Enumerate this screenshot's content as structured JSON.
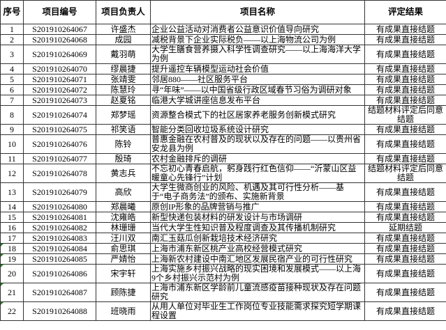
{
  "headers": [
    "序号",
    "项目编号",
    "项目负责人",
    "项目名称",
    "评定结果"
  ],
  "rows": [
    [
      "1",
      "S201910264067",
      "许盛杰",
      "企业公益活动对消费者公益意识价值导向研究",
      "有成果直接结题"
    ],
    [
      "2",
      "S201910264068",
      "成园",
      "减税背景下企业实际税负——以上海物流公司为例",
      "有成果直接结题"
    ],
    [
      "3",
      "S201910264069",
      "戴羽萌",
      "大学生膳食营养摄入科学性调查研究——以上海海洋大学为例",
      "有成果直接结题"
    ],
    [
      "4",
      "S201910264070",
      "缪晨捷",
      "提升遥控车辆模型运动社会价值",
      "有成果直接结题"
    ],
    [
      "5",
      "S201910264071",
      "张靖雯",
      "邻居880——社区服务平台",
      "有成果直接结题"
    ],
    [
      "6",
      "S201910264072",
      "陈慧玲",
      "寻“年味”——以中国省级行政区域春节习俗为调研对象",
      "有成果直接结题"
    ],
    [
      "7",
      "S201910264073",
      "赵夏铭",
      "临港大学城讲座信息发布平台",
      "有成果直接结题"
    ],
    [
      "8",
      "S201910264074",
      "郑梦瑶",
      "资源整合模式下的社区居家养老服务创新模式研究",
      "结题材料评定后同意结题"
    ],
    [
      "9",
      "S201910264075",
      "祁笑语",
      "智能分类回收垃圾系统设计研究",
      "有成果直接结题"
    ],
    [
      "10",
      "S201910264076",
      "陈铃",
      "普惠金融在农村普及的现状以及存在的问题——以贵州省安龙县为例",
      "有成果直接结题"
    ],
    [
      "11",
      "S201910264077",
      "殷琦",
      "农村金融排斥的调研",
      "有成果直接结题"
    ],
    [
      "12",
      "S201910264078",
      "黄志兵",
      "不忘初心青春启航，躬身践行红色信仰——“沂蒙山区益暖童心先锋行”计划",
      "结题材料评定后同意结题"
    ],
    [
      "13",
      "S201910264079",
      "高欣",
      "大学生微商创业的风险、机遇及其可行性分析——基于“电子商务法”的颁布、实施新背景",
      "有成果直接结题"
    ],
    [
      "14",
      "S201910264080",
      "郑晨曦",
      "原创IP形象的品牌营销与推广",
      "有成果直接结题"
    ],
    [
      "15",
      "S201910264081",
      "沈雍皓",
      "新型快递包装材料的研发设计与市场调研",
      "有成果直接结题"
    ],
    [
      "16",
      "S201910264082",
      "林珊珊",
      "当代大学生性知识普及程度调查及其传播机制研究",
      "延期结题"
    ],
    [
      "17",
      "S201910264083",
      "汪川双",
      "南汇玉菇瓜创新栽培技术经济研究",
      "有成果直接结题"
    ],
    [
      "18",
      "S201910264084",
      "俞思琪",
      "上海市浦东新区桃产业高校经营模式研究",
      "有成果直接结题"
    ],
    [
      "19",
      "S201910264085",
      "严婧怡",
      "上海新农村建设中南汇地区发展民宿产业的可行性研究",
      "有成果直接结题"
    ],
    [
      "20",
      "S201910264086",
      "宋宇轩",
      "上海实施乡村振兴战略的现实困境和发展模式——以上海9个乡村振兴示范村为例",
      "有成果直接结题"
    ],
    [
      "21",
      "S201910264087",
      "顾陈捷",
      "上海市浦东新区学龄前儿童流感疫苗接种现状及存在问题研究",
      "有成果直接结题"
    ],
    [
      "22",
      "S201910264088",
      "班晓雨",
      "从用人单位对毕业生工作岗位专业技能需求探究短学期课程设置",
      "有成果直接结题"
    ]
  ]
}
